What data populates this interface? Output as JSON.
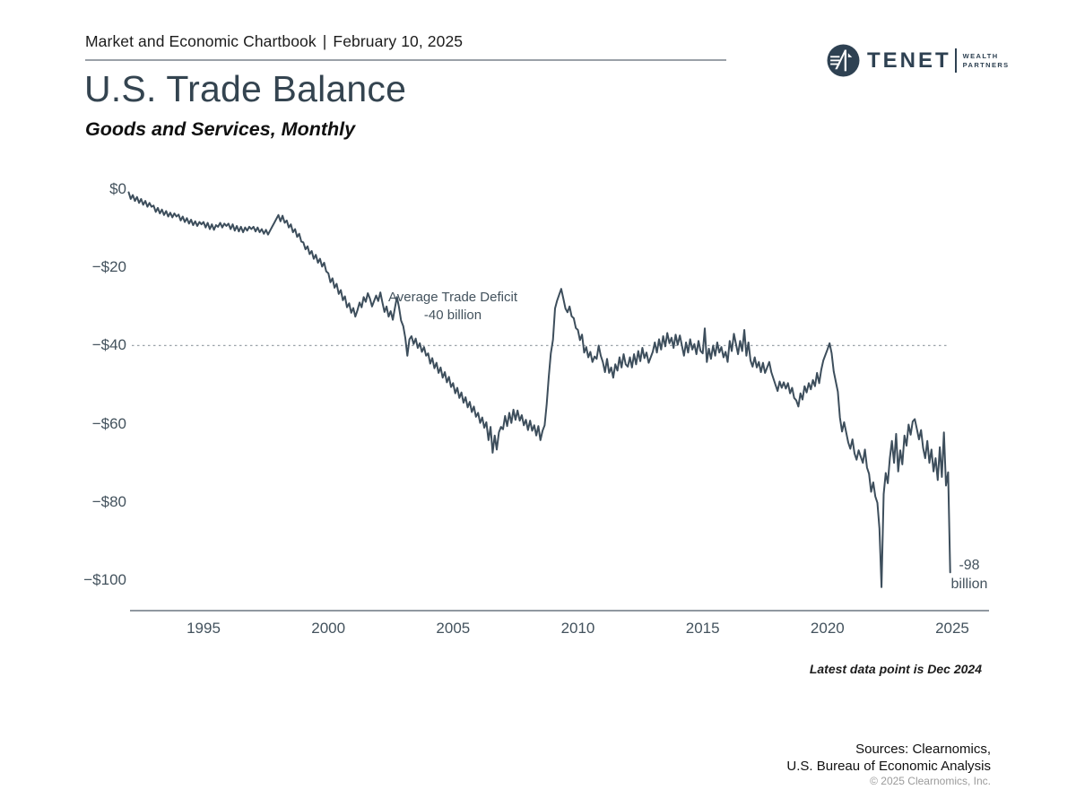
{
  "header": {
    "chartbook_label": "Market and Economic Chartbook",
    "separator": "|",
    "date": "February 10, 2025"
  },
  "logo": {
    "name": "TENET",
    "sub_line1": "WEALTH",
    "sub_line2": "PARTNERS"
  },
  "title": "U.S. Trade Balance",
  "subtitle": "Goods and Services, Monthly",
  "footnote": "Latest data point is Dec 2024",
  "sources": {
    "line1": "Sources: Clearnomics,",
    "line2": "U.S. Bureau of Economic Analysis",
    "copyright": "© 2025 Clearnomics, Inc."
  },
  "colors": {
    "line": "#3d4e5c",
    "axis": "#6b7680",
    "dashed": "#9aa2a9",
    "brand": "#2e4152"
  },
  "chart_data": {
    "type": "line",
    "title": "U.S. Trade Balance",
    "subtitle": "Goods and Services, Monthly",
    "unit": "USD billions, monthly",
    "x_start": 1992.0,
    "points_per_year": 12,
    "x_ticks": [
      1995,
      2000,
      2005,
      2010,
      2015,
      2020,
      2025
    ],
    "y_ticks": [
      0,
      -20,
      -40,
      -60,
      -80,
      -100
    ],
    "y_tick_labels": [
      "$0",
      "−$20",
      "−$40",
      "−$60",
      "−$80",
      "−$100"
    ],
    "ylim": [
      -108,
      2
    ],
    "grid": "off",
    "avg_line": {
      "value": -40,
      "label_line1": "Average Trade Deficit",
      "label_line2": "-40 billion"
    },
    "end_label": {
      "line1": "-98",
      "line2": "billion"
    },
    "values": [
      -0.8,
      -2.5,
      -1.5,
      -3.0,
      -2.0,
      -3.5,
      -2.5,
      -4.0,
      -3.0,
      -4.5,
      -3.5,
      -4.5,
      -4.2,
      -5.8,
      -4.8,
      -6.2,
      -5.2,
      -6.6,
      -5.6,
      -7.0,
      -6.0,
      -7.2,
      -6.2,
      -7.0,
      -6.5,
      -8.0,
      -7.0,
      -8.4,
      -7.4,
      -8.8,
      -7.8,
      -9.2,
      -8.2,
      -9.4,
      -8.4,
      -9.0,
      -8.4,
      -9.8,
      -8.6,
      -10.2,
      -9.0,
      -10.4,
      -9.2,
      -9.6,
      -8.6,
      -9.8,
      -8.8,
      -9.4,
      -8.8,
      -10.2,
      -9.0,
      -10.6,
      -9.4,
      -10.8,
      -9.6,
      -11.0,
      -9.8,
      -10.6,
      -9.6,
      -10.2,
      -9.6,
      -10.8,
      -9.8,
      -11.0,
      -10.2,
      -11.4,
      -10.4,
      -11.6,
      -10.6,
      -9.6,
      -8.6,
      -7.6,
      -6.6,
      -8.2,
      -6.8,
      -8.6,
      -8.0,
      -9.8,
      -9.0,
      -11.0,
      -10.2,
      -12.2,
      -11.4,
      -13.4,
      -13.6,
      -15.4,
      -14.6,
      -16.6,
      -15.8,
      -17.8,
      -16.8,
      -18.8,
      -17.8,
      -19.8,
      -18.8,
      -21.0,
      -21.5,
      -23.8,
      -22.8,
      -25.2,
      -24.2,
      -26.8,
      -25.8,
      -28.4,
      -27.4,
      -30.2,
      -29.2,
      -31.6,
      -30.4,
      -32.6,
      -31.0,
      -29.0,
      -30.2,
      -27.6,
      -28.8,
      -26.6,
      -28.0,
      -30.0,
      -28.6,
      -27.2,
      -28.6,
      -26.4,
      -29.0,
      -31.4,
      -30.0,
      -32.6,
      -31.2,
      -33.4,
      -30.4,
      -27.6,
      -30.2,
      -33.6,
      -35.0,
      -38.0,
      -42.6,
      -38.4,
      -37.6,
      -39.6,
      -38.2,
      -40.6,
      -39.4,
      -41.6,
      -40.4,
      -42.6,
      -42.0,
      -44.6,
      -43.2,
      -45.8,
      -44.4,
      -47.0,
      -45.6,
      -48.2,
      -46.8,
      -49.4,
      -48.0,
      -50.6,
      -49.6,
      -52.2,
      -50.8,
      -53.4,
      -52.0,
      -54.6,
      -53.2,
      -55.8,
      -54.4,
      -57.0,
      -55.6,
      -58.2,
      -57.2,
      -59.8,
      -58.4,
      -61.0,
      -59.6,
      -64.2,
      -60.8,
      -67.4,
      -63.0,
      -66.6,
      -62.2,
      -60.8,
      -61.4,
      -58.0,
      -60.6,
      -57.2,
      -59.8,
      -56.4,
      -59.0,
      -56.6,
      -59.2,
      -57.8,
      -60.4,
      -59.0,
      -61.6,
      -59.2,
      -61.8,
      -60.4,
      -63.0,
      -60.6,
      -64.2,
      -61.8,
      -60.4,
      -55.0,
      -48.0,
      -42.0,
      -38.5,
      -30.5,
      -28.5,
      -27.0,
      -25.5,
      -28.0,
      -30.5,
      -31.5,
      -30.0,
      -32.5,
      -33.0,
      -35.5,
      -36.0,
      -38.6,
      -37.2,
      -41.8,
      -40.4,
      -43.0,
      -41.6,
      -44.2,
      -42.8,
      -43.4,
      -40.0,
      -42.6,
      -44.2,
      -46.8,
      -43.4,
      -47.0,
      -45.6,
      -48.2,
      -44.8,
      -46.4,
      -43.0,
      -45.6,
      -42.2,
      -44.8,
      -45.4,
      -43.0,
      -45.6,
      -42.2,
      -44.8,
      -41.4,
      -44.0,
      -40.6,
      -43.2,
      -41.8,
      -44.4,
      -43.0,
      -41.6,
      -39.2,
      -41.8,
      -38.4,
      -41.0,
      -37.6,
      -40.2,
      -36.8,
      -39.4,
      -38.0,
      -40.6,
      -37.2,
      -39.8,
      -37.4,
      -40.0,
      -42.6,
      -39.2,
      -41.8,
      -38.4,
      -41.0,
      -39.6,
      -42.2,
      -38.8,
      -41.4,
      -42.0,
      -35.6,
      -44.2,
      -40.8,
      -43.4,
      -40.0,
      -42.6,
      -39.2,
      -41.8,
      -40.4,
      -43.0,
      -41.6,
      -44.2,
      -38.8,
      -41.4,
      -37.0,
      -39.6,
      -42.2,
      -38.8,
      -41.4,
      -36.0,
      -42.6,
      -39.2,
      -43.8,
      -45.4,
      -43.0,
      -45.6,
      -44.2,
      -46.8,
      -44.4,
      -47.0,
      -45.6,
      -44.2,
      -46.8,
      -48.4,
      -50.0,
      -51.6,
      -49.2,
      -50.8,
      -49.4,
      -51.0,
      -49.6,
      -52.2,
      -50.8,
      -53.4,
      -54.0,
      -55.6,
      -52.2,
      -53.8,
      -50.4,
      -52.0,
      -49.6,
      -51.2,
      -48.8,
      -50.4,
      -47.0,
      -49.6,
      -46.2,
      -43.8,
      -42.4,
      -41.0,
      -39.4,
      -42.0,
      -46.6,
      -49.2,
      -51.8,
      -58.4,
      -62.0,
      -59.6,
      -62.2,
      -64.8,
      -66.4,
      -64.0,
      -67.6,
      -69.2,
      -66.8,
      -68.4,
      -70.0,
      -66.6,
      -71.2,
      -72.8,
      -77.4,
      -75.0,
      -78.6,
      -80.2,
      -86.8,
      -101.8,
      -78.0,
      -72.6,
      -75.2,
      -68.8,
      -64.4,
      -70.0,
      -62.6,
      -72.2,
      -66.8,
      -70.4,
      -63.0,
      -65.6,
      -60.2,
      -62.8,
      -59.4,
      -58.8,
      -61.4,
      -64.0,
      -61.6,
      -66.2,
      -68.8,
      -64.4,
      -70.0,
      -66.6,
      -72.2,
      -68.8,
      -74.4,
      -66.0,
      -73.6,
      -62.2,
      -75.8,
      -72.4,
      -98.0
    ]
  }
}
